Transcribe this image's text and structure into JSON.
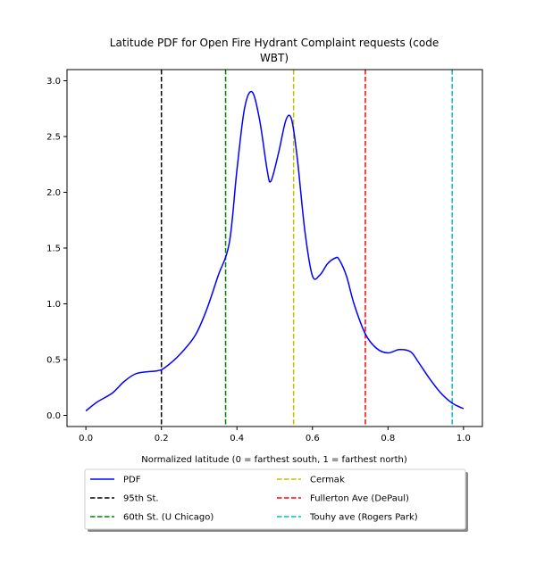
{
  "chart_data": {
    "type": "line",
    "title_line1": "Latitude PDF for Open Fire Hydrant Complaint  requests (code",
    "title_line2": "WBT)",
    "xlabel": "Normalized latitude (0 = farthest south, 1 = farthest north)",
    "ylabel": "",
    "xlim": [
      -0.05,
      1.05
    ],
    "ylim": [
      -0.1,
      3.1
    ],
    "xticks": [
      0.0,
      0.2,
      0.4,
      0.6,
      0.8,
      1.0
    ],
    "xtick_labels": [
      "0.0",
      "0.2",
      "0.4",
      "0.6",
      "0.8",
      "1.0"
    ],
    "yticks": [
      0.0,
      0.5,
      1.0,
      1.5,
      2.0,
      2.5,
      3.0
    ],
    "ytick_labels": [
      "0.0",
      "0.5",
      "1.0",
      "1.5",
      "2.0",
      "2.5",
      "3.0"
    ],
    "grid": false,
    "legend_placement": "below",
    "series": [
      {
        "name": "PDF",
        "color": "#0000ff",
        "style": "solid",
        "x": [
          0.0,
          0.03,
          0.07,
          0.1,
          0.13,
          0.16,
          0.19,
          0.21,
          0.25,
          0.29,
          0.32,
          0.35,
          0.38,
          0.4,
          0.42,
          0.44,
          0.46,
          0.48,
          0.49,
          0.51,
          0.53,
          0.545,
          0.56,
          0.58,
          0.6,
          0.62,
          0.64,
          0.66,
          0.67,
          0.69,
          0.71,
          0.74,
          0.77,
          0.8,
          0.83,
          0.86,
          0.88,
          0.91,
          0.94,
          0.97,
          1.0
        ],
        "y": [
          0.04,
          0.12,
          0.2,
          0.3,
          0.37,
          0.39,
          0.4,
          0.43,
          0.55,
          0.72,
          0.95,
          1.25,
          1.55,
          2.2,
          2.75,
          2.9,
          2.65,
          2.2,
          2.1,
          2.35,
          2.65,
          2.65,
          2.3,
          1.65,
          1.25,
          1.26,
          1.36,
          1.41,
          1.4,
          1.25,
          1.0,
          0.73,
          0.6,
          0.56,
          0.59,
          0.57,
          0.48,
          0.33,
          0.2,
          0.11,
          0.06
        ]
      }
    ],
    "vlines": [
      {
        "name": "95th St.",
        "x": 0.2,
        "color": "#000000"
      },
      {
        "name": "60th St. (U Chicago)",
        "x": 0.37,
        "color": "#008000"
      },
      {
        "name": "Cermak",
        "x": 0.55,
        "color": "#bfbf00"
      },
      {
        "name": "Fullerton Ave (DePaul)",
        "x": 0.74,
        "color": "#ff0000"
      },
      {
        "name": "Touhy ave (Rogers Park)",
        "x": 0.97,
        "color": "#00bfbf"
      }
    ]
  }
}
